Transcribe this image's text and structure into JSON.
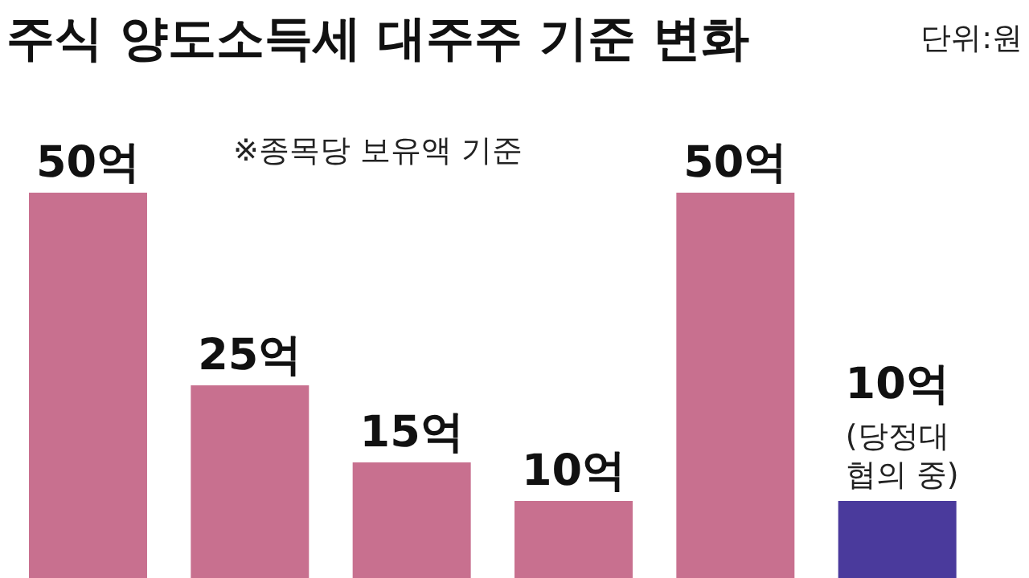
{
  "chart_data": {
    "type": "bar",
    "title": "주식 양도소득세 대주주 기준 변화",
    "subtitle": "※종목당 보유액 기준",
    "categories": [
      null,
      null,
      null,
      null,
      null,
      null
    ],
    "values": [
      50,
      25,
      15,
      10,
      50,
      10
    ],
    "colors": [
      "#c8708f",
      "#c8708f",
      "#c8708f",
      "#c8708f",
      "#c8708f",
      "#4a3a9c"
    ],
    "value_labels": [
      "50억",
      "25억",
      "15억",
      "10억",
      "50억",
      "10억"
    ],
    "annotations": [
      "단위:원",
      {
        "text": "(당정대 협의 중)",
        "y": 10
      }
    ]
  }
}
